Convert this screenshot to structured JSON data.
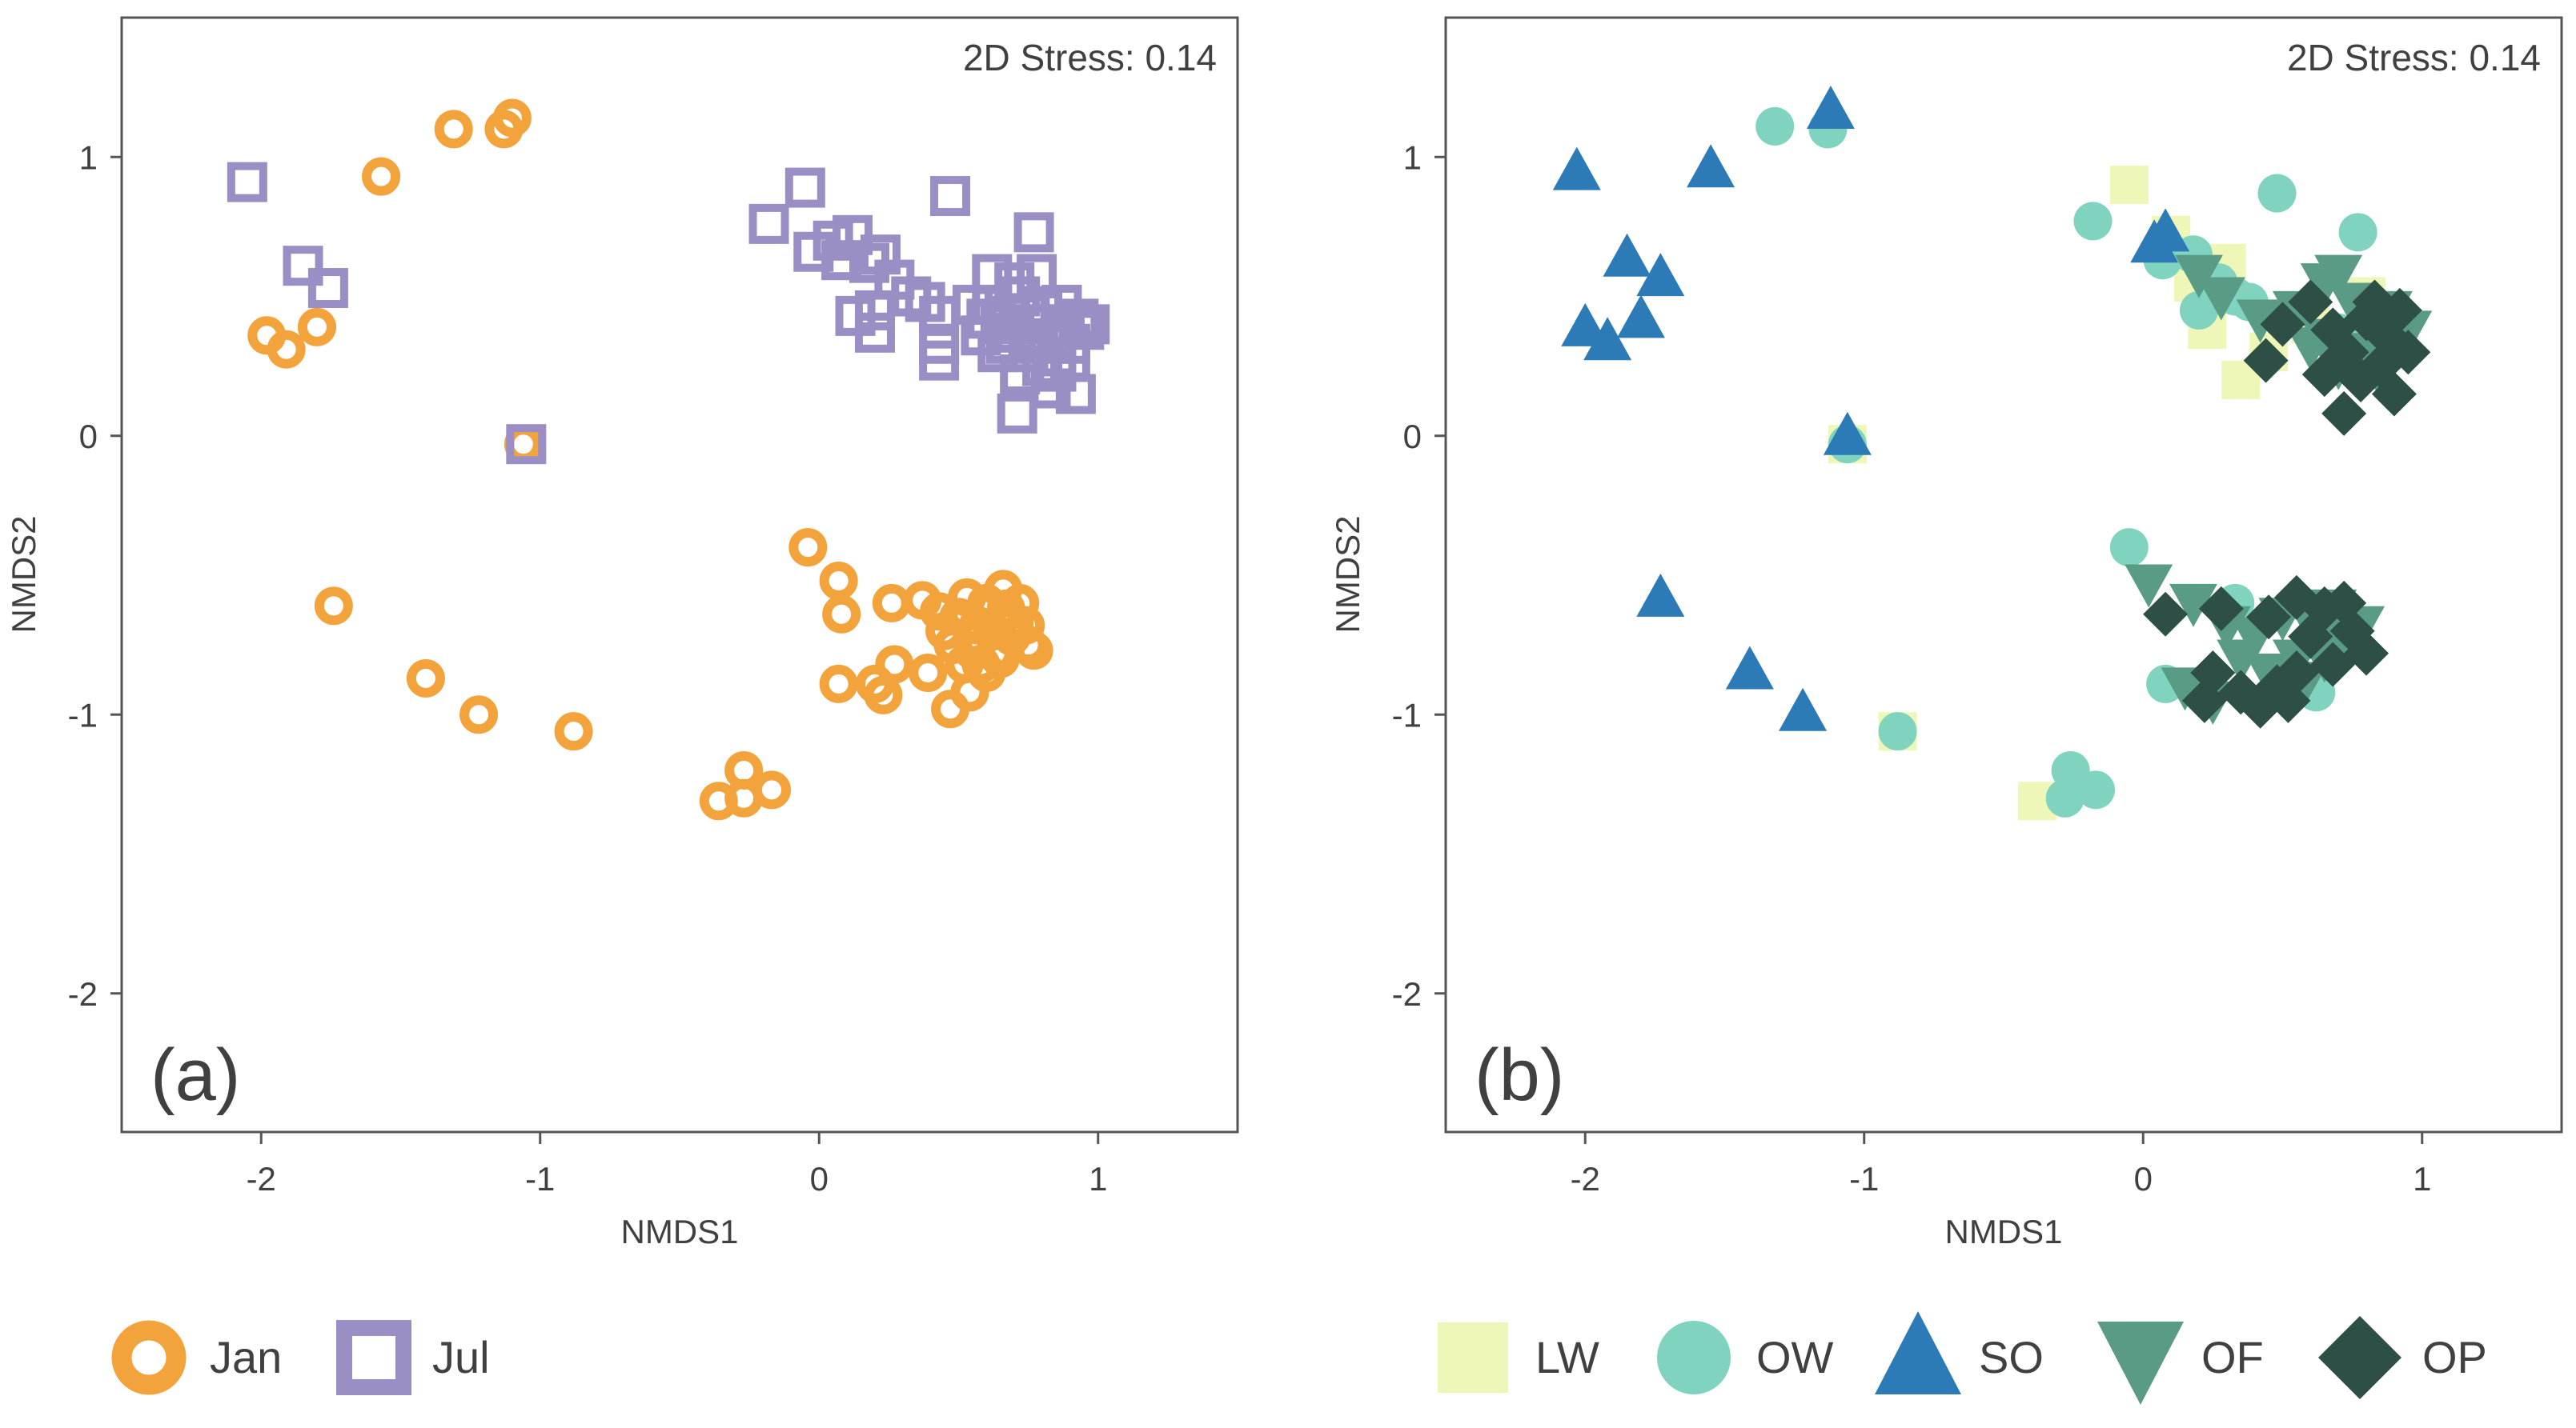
{
  "chart_data": [
    {
      "type": "scatter",
      "panel": "(a)",
      "annotation": "2D Stress: 0.14",
      "xlabel": "NMDS1",
      "ylabel": "NMDS2",
      "xlim": [
        -2.5,
        1.5
      ],
      "ylim": [
        -2.5,
        1.5
      ],
      "xticks": [
        -2,
        -1,
        0,
        1
      ],
      "yticks": [
        -2,
        -1,
        0,
        1
      ],
      "xtick_labels": [
        "-2",
        "-1",
        "0",
        "1"
      ],
      "ytick_labels": [
        "-2",
        "-1",
        "0",
        "1"
      ],
      "legend_position": "bottom",
      "series": [
        {
          "name": "Jan",
          "marker": "ring",
          "color": "#f2a33c",
          "points": [
            [
              -1.57,
              0.93
            ],
            [
              -1.31,
              1.1
            ],
            [
              -1.13,
              1.1
            ],
            [
              -1.1,
              1.14
            ],
            [
              -1.98,
              0.36
            ],
            [
              -1.91,
              0.31
            ],
            [
              -1.8,
              0.39
            ],
            [
              -1.06,
              -0.03
            ],
            [
              -1.74,
              -0.61
            ],
            [
              -1.41,
              -0.87
            ],
            [
              -1.22,
              -1.0
            ],
            [
              -0.88,
              -1.06
            ],
            [
              -0.04,
              -0.4
            ],
            [
              0.07,
              -0.52
            ],
            [
              0.08,
              -0.64
            ],
            [
              0.26,
              -0.6
            ],
            [
              0.37,
              -0.59
            ],
            [
              0.07,
              -0.89
            ],
            [
              0.2,
              -0.89
            ],
            [
              0.23,
              -0.93
            ],
            [
              0.27,
              -0.82
            ],
            [
              0.39,
              -0.85
            ],
            [
              0.47,
              -0.98
            ],
            [
              0.54,
              -0.92
            ],
            [
              -0.36,
              -1.31
            ],
            [
              -0.27,
              -1.3
            ],
            [
              -0.27,
              -1.2
            ],
            [
              -0.17,
              -1.27
            ],
            [
              0.5,
              -0.65
            ],
            [
              0.55,
              -0.72
            ],
            [
              0.6,
              -0.6
            ],
            [
              0.65,
              -0.8
            ],
            [
              0.7,
              -0.67
            ],
            [
              0.75,
              -0.75
            ],
            [
              0.58,
              -0.82
            ],
            [
              0.48,
              -0.75
            ],
            [
              0.72,
              -0.6
            ],
            [
              0.62,
              -0.7
            ],
            [
              0.67,
              -0.62
            ],
            [
              0.53,
              -0.58
            ],
            [
              0.45,
              -0.7
            ],
            [
              0.77,
              -0.77
            ],
            [
              0.57,
              -0.68
            ],
            [
              0.63,
              -0.78
            ],
            [
              0.52,
              -0.82
            ],
            [
              0.69,
              -0.72
            ],
            [
              0.6,
              -0.85
            ],
            [
              0.43,
              -0.63
            ],
            [
              0.74,
              -0.68
            ],
            [
              0.66,
              -0.55
            ],
            [
              0.55,
              -0.77
            ],
            [
              0.59,
              -0.63
            ]
          ]
        },
        {
          "name": "Jul",
          "marker": "open-square",
          "color": "#9b8ec4",
          "points": [
            [
              -2.05,
              0.91
            ],
            [
              -1.85,
              0.61
            ],
            [
              -1.76,
              0.53
            ],
            [
              -1.05,
              -0.03
            ],
            [
              -0.05,
              0.89
            ],
            [
              0.47,
              0.86
            ],
            [
              0.77,
              0.73
            ],
            [
              -0.18,
              0.76
            ],
            [
              -0.02,
              0.66
            ],
            [
              0.05,
              0.7
            ],
            [
              0.12,
              0.72
            ],
            [
              0.18,
              0.62
            ],
            [
              0.08,
              0.63
            ],
            [
              0.22,
              0.65
            ],
            [
              0.27,
              0.56
            ],
            [
              0.33,
              0.5
            ],
            [
              0.38,
              0.48
            ],
            [
              0.43,
              0.43
            ],
            [
              0.2,
              0.45
            ],
            [
              0.13,
              0.43
            ],
            [
              0.2,
              0.37
            ],
            [
              0.43,
              0.33
            ],
            [
              0.43,
              0.27
            ],
            [
              0.55,
              0.47
            ],
            [
              0.62,
              0.58
            ],
            [
              0.7,
              0.55
            ],
            [
              0.78,
              0.58
            ],
            [
              0.65,
              0.4
            ],
            [
              0.62,
              0.47
            ],
            [
              0.7,
              0.37
            ],
            [
              0.75,
              0.3
            ],
            [
              0.8,
              0.45
            ],
            [
              0.85,
              0.35
            ],
            [
              0.88,
              0.4
            ],
            [
              0.72,
              0.5
            ],
            [
              0.67,
              0.33
            ],
            [
              0.8,
              0.25
            ],
            [
              0.72,
              0.22
            ],
            [
              0.85,
              0.23
            ],
            [
              0.9,
              0.33
            ],
            [
              0.95,
              0.38
            ],
            [
              0.93,
              0.42
            ],
            [
              0.71,
              0.08
            ],
            [
              0.83,
              0.17
            ],
            [
              0.92,
              0.15
            ],
            [
              0.6,
              0.42
            ],
            [
              0.78,
              0.4
            ],
            [
              0.64,
              0.3
            ],
            [
              0.87,
              0.47
            ],
            [
              0.75,
              0.44
            ],
            [
              0.68,
              0.43
            ],
            [
              0.82,
              0.33
            ],
            [
              0.9,
              0.27
            ],
            [
              0.97,
              0.4
            ],
            [
              0.58,
              0.36
            ],
            [
              0.76,
              0.35
            ]
          ]
        }
      ]
    },
    {
      "type": "scatter",
      "panel": "(b)",
      "annotation": "2D Stress: 0.14",
      "xlabel": "NMDS1",
      "ylabel": "NMDS2",
      "xlim": [
        -2.5,
        1.5
      ],
      "ylim": [
        -2.5,
        1.5
      ],
      "xticks": [
        -2,
        -1,
        0,
        1
      ],
      "yticks": [
        -2,
        -1,
        0,
        1
      ],
      "xtick_labels": [
        "-2",
        "-1",
        "0",
        "1"
      ],
      "ytick_labels": [
        "-2",
        "-1",
        "0",
        "1"
      ],
      "legend_position": "bottom",
      "series": [
        {
          "name": "LW",
          "marker": "square",
          "color": "#eef7b8",
          "points": [
            [
              -0.05,
              0.9
            ],
            [
              0.1,
              0.72
            ],
            [
              0.18,
              0.55
            ],
            [
              0.23,
              0.38
            ],
            [
              0.45,
              0.3
            ],
            [
              -1.06,
              -0.03
            ],
            [
              -0.88,
              -1.06
            ],
            [
              -0.38,
              -1.31
            ],
            [
              0.3,
              0.62
            ],
            [
              0.6,
              0.4
            ],
            [
              0.8,
              0.5
            ],
            [
              0.35,
              0.2
            ]
          ]
        },
        {
          "name": "OW",
          "marker": "circle",
          "color": "#7fd3bf",
          "points": [
            [
              -1.32,
              1.11
            ],
            [
              -1.13,
              1.1
            ],
            [
              0.48,
              0.87
            ],
            [
              0.77,
              0.73
            ],
            [
              -0.18,
              0.77
            ],
            [
              0.07,
              0.63
            ],
            [
              0.18,
              0.65
            ],
            [
              0.2,
              0.45
            ],
            [
              0.27,
              0.55
            ],
            [
              0.33,
              0.5
            ],
            [
              0.38,
              0.48
            ],
            [
              0.7,
              0.37
            ],
            [
              -1.06,
              -0.03
            ],
            [
              -0.05,
              -0.4
            ],
            [
              0.08,
              -0.89
            ],
            [
              0.33,
              -0.6
            ],
            [
              -0.88,
              -1.06
            ],
            [
              -0.28,
              -1.3
            ],
            [
              -0.26,
              -1.2
            ],
            [
              -0.17,
              -1.27
            ],
            [
              0.5,
              -0.85
            ],
            [
              0.62,
              -0.92
            ]
          ]
        },
        {
          "name": "SO",
          "marker": "triangle-up",
          "color": "#2c7bb6",
          "points": [
            [
              -1.12,
              1.17
            ],
            [
              -2.03,
              0.95
            ],
            [
              -1.55,
              0.96
            ],
            [
              -1.85,
              0.64
            ],
            [
              -1.73,
              0.57
            ],
            [
              -2.0,
              0.39
            ],
            [
              -1.92,
              0.34
            ],
            [
              -1.8,
              0.42
            ],
            [
              -1.06,
              0.0
            ],
            [
              0.04,
              0.69
            ],
            [
              0.08,
              0.73
            ],
            [
              -1.73,
              -0.58
            ],
            [
              -1.41,
              -0.84
            ],
            [
              -1.22,
              -0.99
            ]
          ]
        },
        {
          "name": "OF",
          "marker": "triangle-down",
          "color": "#5a9b86",
          "points": [
            [
              0.2,
              0.58
            ],
            [
              0.28,
              0.5
            ],
            [
              0.42,
              0.42
            ],
            [
              0.55,
              0.45
            ],
            [
              0.65,
              0.55
            ],
            [
              0.7,
              0.58
            ],
            [
              0.75,
              0.48
            ],
            [
              0.82,
              0.38
            ],
            [
              0.88,
              0.45
            ],
            [
              0.95,
              0.38
            ],
            [
              0.78,
              0.3
            ],
            [
              0.7,
              0.25
            ],
            [
              0.65,
              0.35
            ],
            [
              0.85,
              0.22
            ],
            [
              0.6,
              0.32
            ],
            [
              0.9,
              0.3
            ],
            [
              0.02,
              -0.53
            ],
            [
              0.18,
              -0.6
            ],
            [
              0.3,
              -0.68
            ],
            [
              0.4,
              -0.72
            ],
            [
              0.5,
              -0.65
            ],
            [
              0.55,
              -0.8
            ],
            [
              0.62,
              -0.7
            ],
            [
              0.68,
              -0.62
            ],
            [
              0.72,
              -0.75
            ],
            [
              0.78,
              -0.68
            ],
            [
              0.45,
              -0.85
            ],
            [
              0.58,
              -0.88
            ],
            [
              0.65,
              -0.8
            ],
            [
              0.35,
              -0.8
            ],
            [
              0.15,
              -0.9
            ],
            [
              0.25,
              -0.95
            ]
          ]
        },
        {
          "name": "OP",
          "marker": "diamond",
          "color": "#2d4f45",
          "points": [
            [
              0.44,
              0.27
            ],
            [
              0.6,
              0.48
            ],
            [
              0.68,
              0.38
            ],
            [
              0.73,
              0.3
            ],
            [
              0.8,
              0.42
            ],
            [
              0.88,
              0.35
            ],
            [
              0.92,
              0.45
            ],
            [
              0.85,
              0.25
            ],
            [
              0.95,
              0.3
            ],
            [
              0.78,
              0.2
            ],
            [
              0.9,
              0.15
            ],
            [
              0.72,
              0.08
            ],
            [
              0.65,
              0.22
            ],
            [
              0.5,
              0.4
            ],
            [
              0.83,
              0.48
            ],
            [
              0.08,
              -0.64
            ],
            [
              0.28,
              -0.62
            ],
            [
              0.45,
              -0.65
            ],
            [
              0.55,
              -0.58
            ],
            [
              0.65,
              -0.62
            ],
            [
              0.72,
              -0.6
            ],
            [
              0.75,
              -0.7
            ],
            [
              0.8,
              -0.78
            ],
            [
              0.68,
              -0.82
            ],
            [
              0.6,
              -0.72
            ],
            [
              0.55,
              -0.85
            ],
            [
              0.48,
              -0.9
            ],
            [
              0.42,
              -0.97
            ],
            [
              0.35,
              -0.92
            ],
            [
              0.25,
              -0.85
            ],
            [
              0.22,
              -0.95
            ],
            [
              0.52,
              -0.95
            ]
          ]
        }
      ]
    }
  ]
}
